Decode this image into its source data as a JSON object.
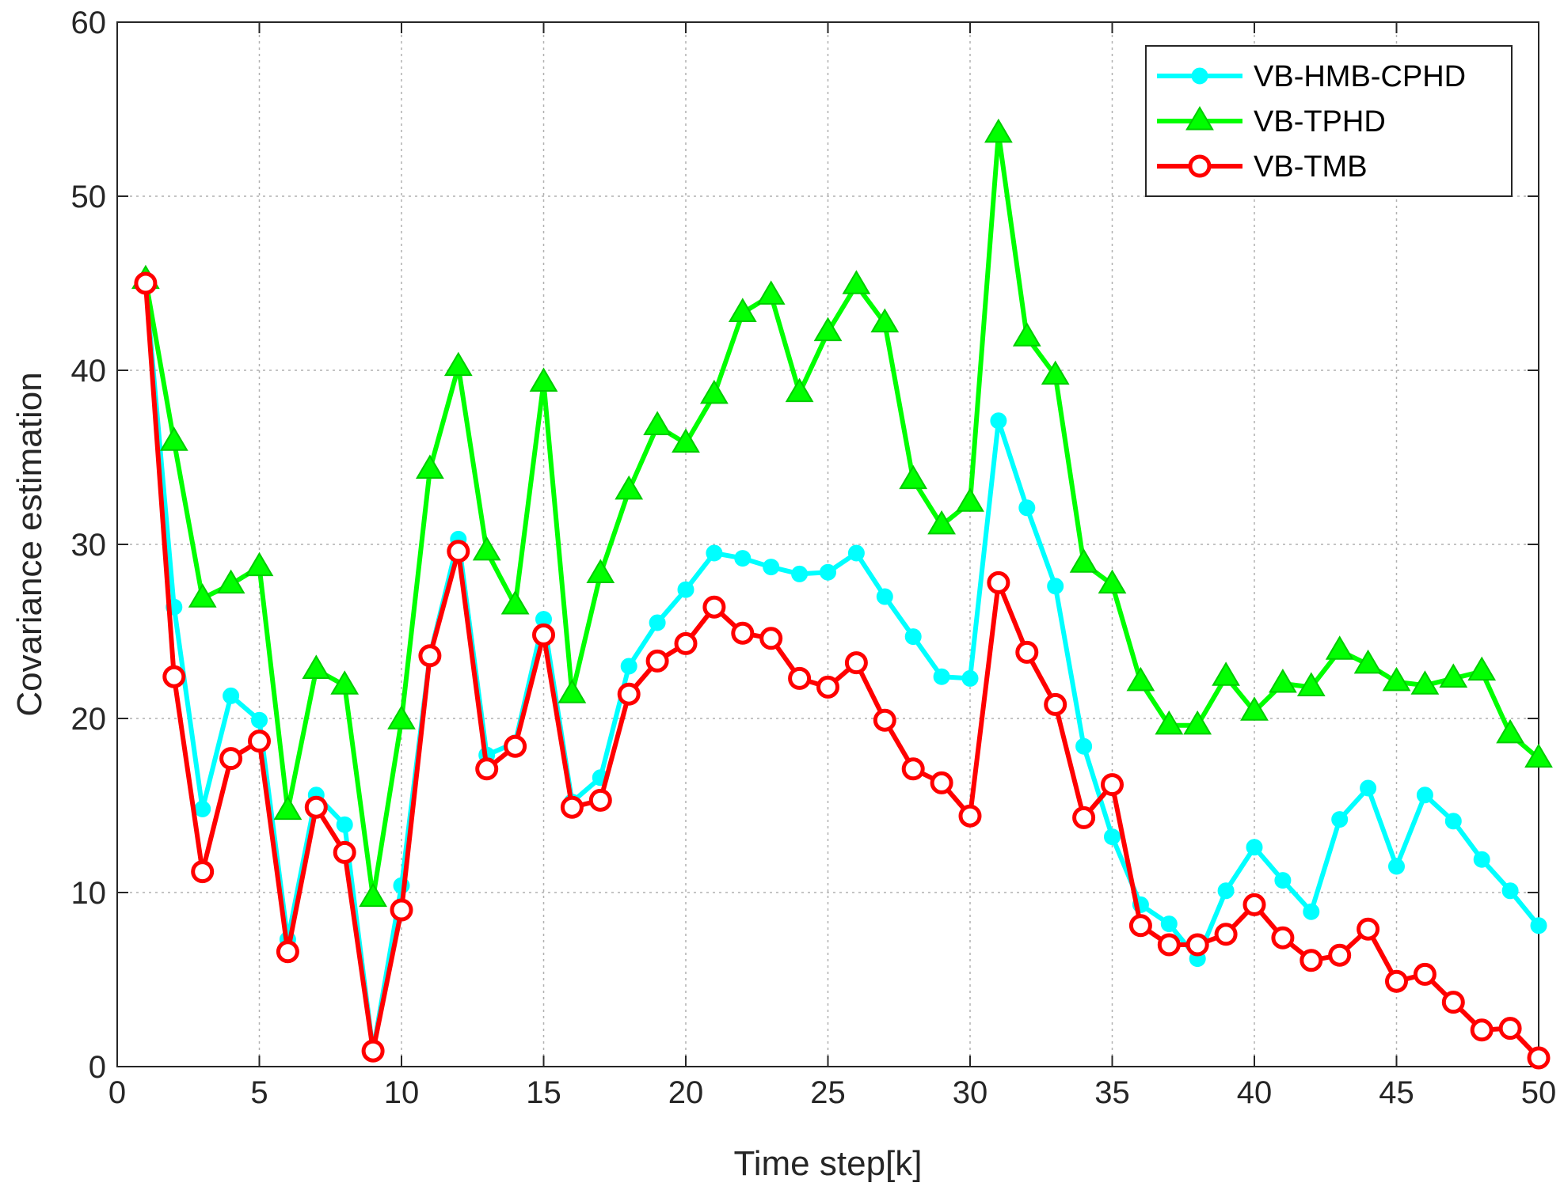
{
  "chart_data": {
    "type": "line",
    "title": "",
    "xlabel": "Time step[k]",
    "ylabel": "Covariance estimation",
    "xlim": [
      0,
      50
    ],
    "ylim": [
      0,
      60
    ],
    "xticks": [
      0,
      5,
      10,
      15,
      20,
      25,
      30,
      35,
      40,
      45,
      50
    ],
    "yticks": [
      0,
      10,
      20,
      30,
      40,
      50,
      60
    ],
    "xtick_labels": [
      "0",
      "5",
      "10",
      "15",
      "20",
      "25",
      "30",
      "35",
      "40",
      "45",
      "50"
    ],
    "ytick_labels": [
      "0",
      "10",
      "20",
      "30",
      "40",
      "50",
      "60"
    ],
    "grid": true,
    "legend_position": "top-right",
    "x": [
      1,
      2,
      3,
      4,
      5,
      6,
      7,
      8,
      9,
      10,
      11,
      12,
      13,
      14,
      15,
      16,
      17,
      18,
      19,
      20,
      21,
      22,
      23,
      24,
      25,
      26,
      27,
      28,
      29,
      30,
      31,
      32,
      33,
      34,
      35,
      36,
      37,
      38,
      39,
      40,
      41,
      42,
      43,
      44,
      45,
      46,
      47,
      48,
      49,
      50
    ],
    "series": [
      {
        "name": "VB-HMB-CPHD",
        "color": "#00ffff",
        "marker": "dot",
        "values": [
          45,
          26.4,
          14.8,
          21.3,
          19.9,
          7.3,
          15.6,
          13.9,
          0.9,
          10.4,
          23.6,
          30.3,
          17.9,
          18.6,
          25.7,
          15.2,
          16.6,
          23,
          25.5,
          27.4,
          29.5,
          29.2,
          28.7,
          28.3,
          28.4,
          29.5,
          27,
          24.7,
          22.4,
          22.3,
          37.1,
          32.1,
          27.6,
          18.4,
          13.2,
          9.3,
          8.2,
          6.2,
          10.1,
          12.6,
          10.7,
          8.9,
          14.2,
          16,
          11.5,
          15.6,
          14.1,
          11.9,
          10.1,
          8.1
        ]
      },
      {
        "name": "VB-TPHD",
        "color": "#00ff00",
        "marker": "triangle",
        "values": [
          45.2,
          35.9,
          26.9,
          27.7,
          28.7,
          14.7,
          22.8,
          21.9,
          9.7,
          19.9,
          34.3,
          40.2,
          29.6,
          26.5,
          39.3,
          21.4,
          28.3,
          33.1,
          36.8,
          35.8,
          38.6,
          43.3,
          44.3,
          38.7,
          42.2,
          44.9,
          42.7,
          33.7,
          31.1,
          32.4,
          53.6,
          41.9,
          39.7,
          28.9,
          27.7,
          22.1,
          19.6,
          19.6,
          22.4,
          20.4,
          22,
          21.8,
          23.9,
          23.1,
          22.1,
          21.9,
          22.3,
          22.7,
          19.1,
          17.7
        ]
      },
      {
        "name": "VB-TMB",
        "color": "#ff0000",
        "marker": "circle",
        "values": [
          45,
          22.4,
          11.2,
          17.7,
          18.7,
          6.6,
          14.9,
          12.3,
          0.9,
          9,
          23.6,
          29.6,
          17.1,
          18.4,
          24.8,
          14.9,
          15.3,
          21.4,
          23.3,
          24.3,
          26.4,
          24.9,
          24.6,
          22.3,
          21.8,
          23.2,
          19.9,
          17.1,
          16.3,
          14.4,
          27.8,
          23.8,
          20.8,
          14.3,
          16.2,
          8.1,
          7,
          7,
          7.6,
          9.3,
          7.4,
          6.1,
          6.4,
          7.9,
          4.9,
          5.3,
          3.7,
          2.1,
          2.2,
          0.5
        ]
      }
    ]
  }
}
